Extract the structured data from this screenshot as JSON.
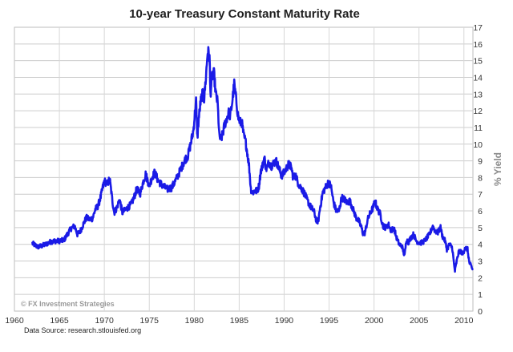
{
  "chart_data": {
    "type": "line",
    "title": "10-year Treasury Constant Maturity Rate",
    "xlabel": "",
    "ylabel": "% Yield",
    "xlim": [
      1960,
      2011
    ],
    "ylim": [
      0,
      17
    ],
    "x_ticks": [
      "1960",
      "1965",
      "1970",
      "1975",
      "1980",
      "1985",
      "1990",
      "1995",
      "2000",
      "2005",
      "2010"
    ],
    "y_ticks": [
      "0",
      "1",
      "2",
      "3",
      "4",
      "5",
      "6",
      "7",
      "8",
      "9",
      "10",
      "11",
      "12",
      "13",
      "14",
      "15",
      "16",
      "17"
    ],
    "grid": true,
    "legend": "none",
    "series": [
      {
        "name": "10-year Treasury Constant Maturity Rate",
        "color": "#1a1ae6",
        "x": [
          1962.0,
          1962.3,
          1962.6,
          1963.0,
          1963.5,
          1964.0,
          1964.5,
          1965.0,
          1965.5,
          1966.0,
          1966.3,
          1966.7,
          1967.0,
          1967.3,
          1967.7,
          1968.0,
          1968.3,
          1968.7,
          1969.0,
          1969.3,
          1969.6,
          1970.0,
          1970.3,
          1970.6,
          1970.9,
          1971.1,
          1971.4,
          1971.7,
          1972.0,
          1972.5,
          1973.0,
          1973.3,
          1973.6,
          1974.0,
          1974.3,
          1974.6,
          1975.0,
          1975.3,
          1975.6,
          1976.0,
          1976.5,
          1977.0,
          1977.5,
          1978.0,
          1978.5,
          1979.0,
          1979.3,
          1979.6,
          1979.9,
          1980.1,
          1980.2,
          1980.35,
          1980.5,
          1980.7,
          1980.9,
          1981.1,
          1981.3,
          1981.5,
          1981.7,
          1981.8,
          1982.0,
          1982.2,
          1982.4,
          1982.6,
          1982.8,
          1983.0,
          1983.2,
          1983.4,
          1983.6,
          1983.8,
          1984.0,
          1984.2,
          1984.45,
          1984.7,
          1984.9,
          1985.1,
          1985.3,
          1985.5,
          1985.7,
          1985.9,
          1986.1,
          1986.3,
          1986.5,
          1986.7,
          1987.0,
          1987.2,
          1987.4,
          1987.6,
          1987.8,
          1988.0,
          1988.3,
          1988.6,
          1988.9,
          1989.1,
          1989.4,
          1989.7,
          1990.0,
          1990.3,
          1990.5,
          1990.8,
          1991.0,
          1991.3,
          1991.6,
          1992.0,
          1992.3,
          1992.6,
          1993.0,
          1993.3,
          1993.6,
          1993.8,
          1994.0,
          1994.3,
          1994.6,
          1994.9,
          1995.2,
          1995.5,
          1995.8,
          1996.1,
          1996.4,
          1996.7,
          1997.0,
          1997.3,
          1997.6,
          1998.0,
          1998.3,
          1998.6,
          1998.8,
          1999.0,
          1999.3,
          1999.6,
          1999.9,
          2000.1,
          2000.4,
          2000.7,
          2001.0,
          2001.3,
          2001.6,
          2001.9,
          2002.2,
          2002.5,
          2002.8,
          2003.1,
          2003.4,
          2003.6,
          2003.8,
          2004.1,
          2004.4,
          2004.7,
          2005.0,
          2005.3,
          2005.6,
          2005.9,
          2006.2,
          2006.5,
          2006.8,
          2007.1,
          2007.4,
          2007.6,
          2007.9,
          2008.1,
          2008.4,
          2008.7,
          2008.9,
          2009.0,
          2009.2,
          2009.4,
          2009.6,
          2009.9,
          2010.1,
          2010.4,
          2010.6,
          2010.8,
          2010.95
        ],
        "values": [
          4.05,
          3.95,
          3.85,
          3.9,
          4.0,
          4.15,
          4.2,
          4.2,
          4.25,
          4.7,
          4.95,
          5.1,
          4.6,
          4.75,
          5.25,
          5.6,
          5.5,
          5.55,
          6.1,
          6.3,
          6.85,
          7.8,
          7.6,
          7.9,
          6.6,
          5.9,
          6.2,
          6.7,
          5.9,
          6.15,
          6.4,
          6.8,
          7.3,
          7.05,
          7.7,
          8.2,
          7.5,
          8.0,
          8.3,
          7.8,
          7.5,
          7.3,
          7.4,
          7.9,
          8.5,
          9.1,
          9.3,
          10.0,
          10.8,
          12.0,
          12.6,
          10.4,
          11.5,
          12.5,
          13.0,
          12.7,
          14.0,
          15.6,
          15.2,
          13.0,
          14.1,
          14.2,
          13.0,
          12.5,
          10.4,
          10.3,
          10.7,
          11.2,
          11.5,
          11.9,
          11.7,
          12.4,
          13.6,
          12.5,
          11.6,
          11.3,
          11.3,
          10.5,
          10.2,
          9.5,
          8.7,
          7.3,
          7.1,
          7.2,
          7.2,
          7.5,
          8.4,
          8.7,
          9.2,
          8.5,
          8.9,
          8.7,
          8.9,
          9.0,
          8.6,
          8.1,
          8.3,
          8.6,
          8.8,
          8.6,
          8.0,
          8.1,
          7.6,
          7.3,
          7.0,
          6.6,
          6.2,
          6.0,
          5.4,
          5.4,
          6.2,
          7.1,
          7.4,
          7.7,
          7.5,
          6.5,
          6.0,
          6.0,
          6.8,
          6.7,
          6.5,
          6.6,
          6.2,
          5.6,
          5.4,
          5.0,
          4.6,
          4.7,
          5.5,
          5.9,
          6.2,
          6.6,
          6.1,
          5.8,
          5.1,
          5.0,
          5.2,
          4.8,
          5.0,
          4.4,
          4.0,
          3.9,
          3.3,
          4.3,
          4.1,
          4.4,
          4.6,
          4.2,
          4.1,
          4.1,
          4.2,
          4.4,
          4.6,
          5.1,
          4.8,
          4.7,
          5.0,
          4.5,
          4.2,
          3.7,
          4.0,
          3.8,
          2.8,
          2.4,
          3.0,
          3.5,
          3.6,
          3.4,
          3.8,
          3.7,
          2.9,
          2.7,
          2.5
        ]
      }
    ],
    "watermark": "© FX Investment Strategies",
    "source": "Data Source: research.stlouisfed.org"
  }
}
